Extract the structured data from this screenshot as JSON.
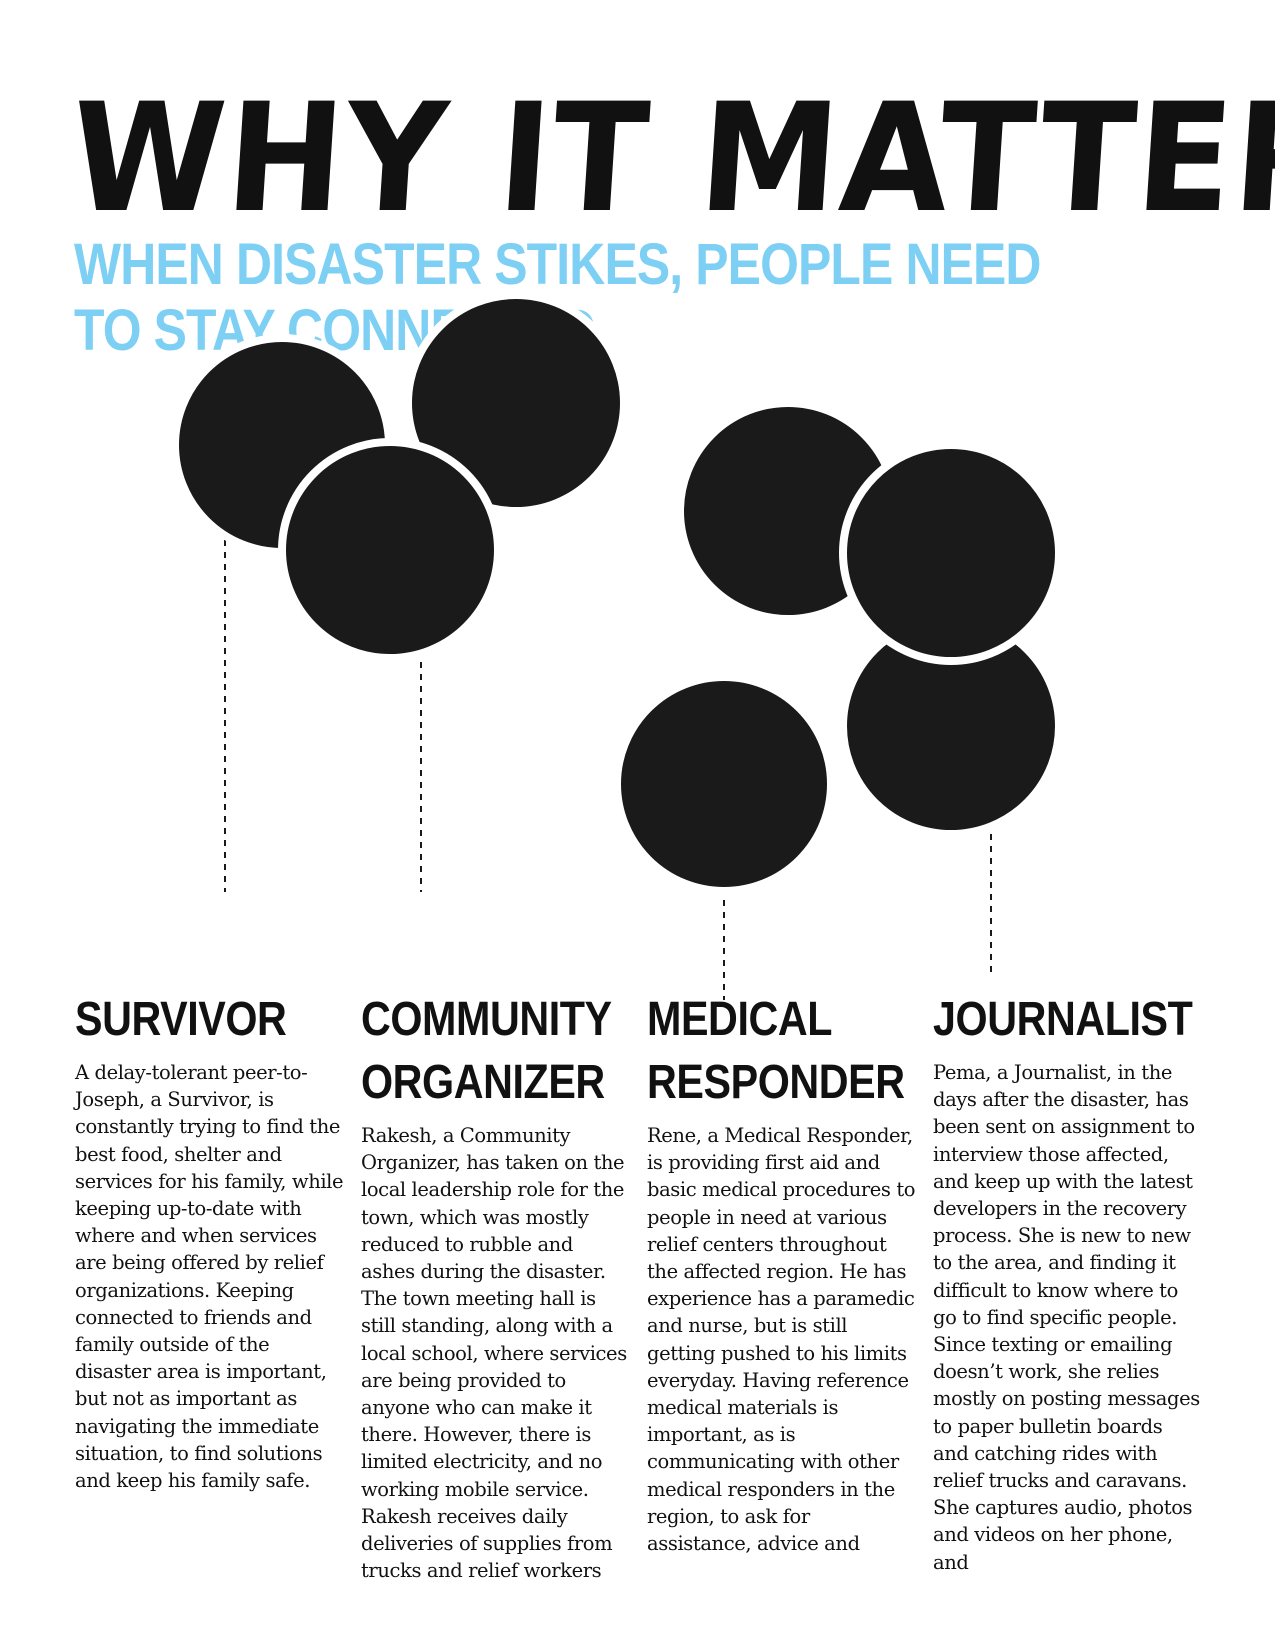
{
  "header": {
    "title": "WHY IT MATTERS",
    "subtitle": "WHEN DISASTER STIKES, PEOPLE NEED TO STAY CONNECTED"
  },
  "colors": {
    "title": "#111111",
    "subtitle": "#7dcff3",
    "circles": "#1a1a1a",
    "text": "#111111"
  },
  "personas": [
    {
      "heading": "SURVIVOR",
      "body": "A delay-tolerant peer-to-Joseph, a Survivor, is constantly trying to find the best food, shelter and services for his family, while keeping up-to-date with where and when services are being offered by relief organizations. Keeping connected to friends and family outside of the disaster area is important, but not as important as navigating the immediate situation, to find solutions and keep his family safe."
    },
    {
      "heading": "COMMUNITY ORGANIZER",
      "body": "Rakesh, a Community Organizer, has taken on the local leadership role for the town, which was mostly reduced to rubble and ashes during the disaster. The town meeting hall is still standing, along with a local school, where services are being provided to anyone who can make it there. However, there is limited electricity, and no working mobile service. Rakesh receives daily deliveries of supplies from trucks and relief workers"
    },
    {
      "heading": "MEDICAL RESPONDER",
      "body": "Rene, a Medical Responder, is providing first aid and basic medical procedures to people in need at various relief centers throughout the affected region. He has experience has a paramedic and nurse, but is still getting pushed to his limits everyday. Having reference medical materials is important, as is communicating with other medical responders in the region, to ask for assistance, advice and"
    },
    {
      "heading": "JOURNALIST",
      "body": "Pema, a Journalist, in the days after the disaster, has been sent on assignment to interview those affected, and keep up with the latest developers in the recovery process. She is new to new to the area, and finding it difficult to know where to go to find specific people. Since texting or emailing doesn’t work, she relies mostly on posting messages to paper bulletin boards and catching rides with relief trucks and caravans. She captures audio, photos and videos on her phone, and"
    }
  ]
}
